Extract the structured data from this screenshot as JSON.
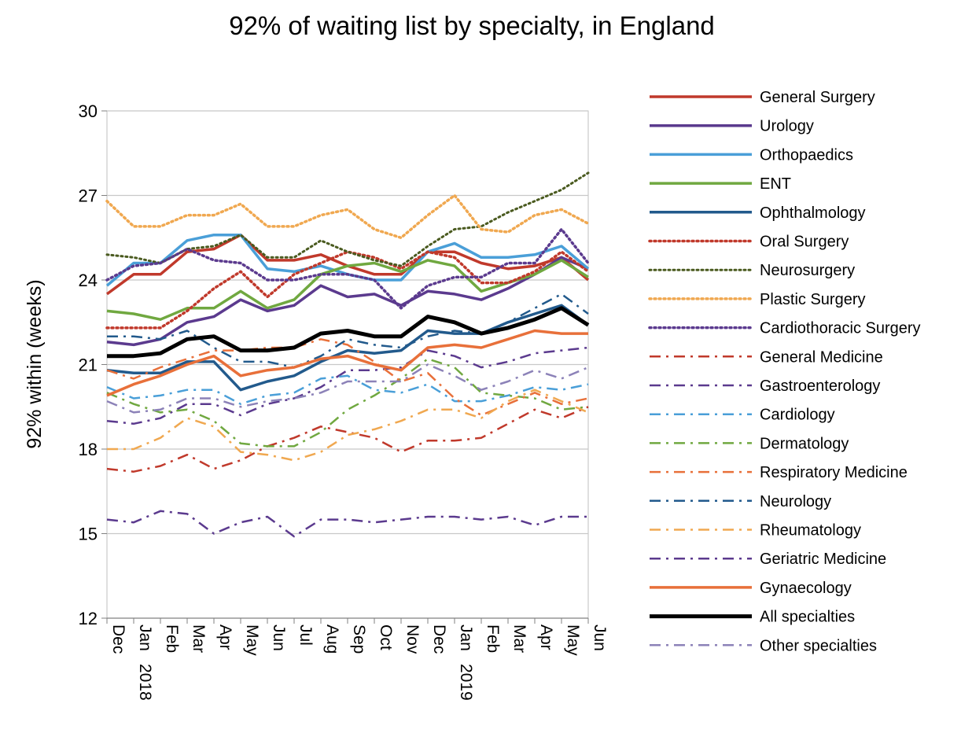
{
  "chart_data": {
    "type": "line",
    "title": "92% of waiting list by specialty, in England",
    "ylabel": "92% within  (weeks)",
    "xlabel": "",
    "ylim": [
      12,
      30
    ],
    "yticks": [
      12,
      15,
      18,
      21,
      24,
      27,
      30
    ],
    "grid": "horizontal",
    "legend_position": "right",
    "categories": [
      "Dec",
      "Jan",
      "Feb",
      "Mar",
      "Apr",
      "May",
      "Jun",
      "Jul",
      "Aug",
      "Sep",
      "Oct",
      "Nov",
      "Dec",
      "Jan",
      "Feb",
      "Mar",
      "Apr",
      "May",
      "Jun"
    ],
    "year_labels": [
      {
        "index": 1,
        "label": "2018"
      },
      {
        "index": 13,
        "label": "2019"
      }
    ],
    "series": [
      {
        "name": "General Surgery",
        "color": "#c0392b",
        "style": "solid",
        "width": 3.5,
        "values": [
          23.5,
          24.2,
          24.2,
          25.0,
          25.1,
          25.6,
          24.7,
          24.7,
          24.9,
          24.5,
          24.2,
          24.2,
          25.0,
          25.0,
          24.6,
          24.4,
          24.5,
          24.8,
          24.0
        ]
      },
      {
        "name": "Urology",
        "color": "#5b3a8e",
        "style": "solid",
        "width": 3.5,
        "values": [
          21.8,
          21.7,
          21.9,
          22.5,
          22.7,
          23.3,
          22.9,
          23.1,
          23.8,
          23.4,
          23.5,
          23.1,
          23.6,
          23.5,
          23.3,
          23.7,
          24.2,
          24.8,
          24.4
        ]
      },
      {
        "name": "Orthopaedics",
        "color": "#4a9fd8",
        "style": "solid",
        "width": 3.5,
        "values": [
          23.8,
          24.6,
          24.6,
          25.4,
          25.6,
          25.6,
          24.4,
          24.3,
          24.5,
          24.2,
          24.0,
          24.0,
          25.0,
          25.3,
          24.8,
          24.8,
          24.9,
          25.2,
          24.4
        ]
      },
      {
        "name": "ENT",
        "color": "#70a840",
        "style": "solid",
        "width": 3.5,
        "values": [
          22.9,
          22.8,
          22.6,
          23.0,
          23.0,
          23.6,
          23.0,
          23.3,
          24.2,
          24.5,
          24.6,
          24.3,
          24.7,
          24.5,
          23.6,
          23.9,
          24.2,
          24.7,
          24.1
        ]
      },
      {
        "name": "Ophthalmology",
        "color": "#225a8c",
        "style": "solid",
        "width": 3.5,
        "values": [
          20.8,
          20.7,
          20.7,
          21.1,
          21.1,
          20.1,
          20.4,
          20.6,
          21.1,
          21.5,
          21.4,
          21.5,
          22.2,
          22.1,
          22.1,
          22.5,
          22.8,
          23.1,
          22.4
        ]
      },
      {
        "name": "Oral Surgery",
        "color": "#c0392b",
        "style": "dotted",
        "width": 3.5,
        "values": [
          22.3,
          22.3,
          22.3,
          22.9,
          23.7,
          24.3,
          23.4,
          24.2,
          24.6,
          25.0,
          24.8,
          24.4,
          25.0,
          24.8,
          23.9,
          23.9,
          24.3,
          25.0,
          24.3
        ]
      },
      {
        "name": "Neurosurgery",
        "color": "#4a5a1f",
        "style": "dotted",
        "width": 3,
        "values": [
          24.9,
          24.8,
          24.6,
          25.1,
          25.2,
          25.6,
          24.8,
          24.8,
          25.4,
          25.0,
          24.7,
          24.5,
          25.2,
          25.8,
          25.9,
          26.4,
          26.8,
          27.2,
          27.8
        ]
      },
      {
        "name": "Plastic Surgery",
        "color": "#f0a850",
        "style": "dotted",
        "width": 3.5,
        "values": [
          26.8,
          25.9,
          25.9,
          26.3,
          26.3,
          26.7,
          25.9,
          25.9,
          26.3,
          26.5,
          25.8,
          25.5,
          26.3,
          27.0,
          25.8,
          25.7,
          26.3,
          26.5,
          26.0
        ]
      },
      {
        "name": "Cardiothoracic Surgery",
        "color": "#5b3a8e",
        "style": "dotted",
        "width": 3.5,
        "values": [
          24.0,
          24.5,
          24.6,
          25.1,
          24.7,
          24.6,
          24.0,
          24.0,
          24.2,
          24.2,
          24.0,
          23.0,
          23.8,
          24.1,
          24.1,
          24.6,
          24.6,
          25.8,
          24.6
        ]
      },
      {
        "name": "General Medicine",
        "color": "#c0392b",
        "style": "dashdot",
        "width": 2.5,
        "values": [
          17.3,
          17.2,
          17.4,
          17.8,
          17.3,
          17.6,
          18.1,
          18.4,
          18.8,
          18.6,
          18.4,
          17.9,
          18.3,
          18.3,
          18.4,
          18.9,
          19.4,
          19.1,
          19.5
        ]
      },
      {
        "name": "Gastroenterology",
        "color": "#5b3a8e",
        "style": "dashdot",
        "width": 2.5,
        "values": [
          19.0,
          18.9,
          19.1,
          19.6,
          19.6,
          19.2,
          19.6,
          19.8,
          20.2,
          20.8,
          20.8,
          20.9,
          21.5,
          21.3,
          20.9,
          21.1,
          21.4,
          21.5,
          21.6
        ]
      },
      {
        "name": "Cardiology",
        "color": "#4a9fd8",
        "style": "dashdot",
        "width": 2.5,
        "values": [
          20.2,
          19.8,
          19.9,
          20.1,
          20.1,
          19.6,
          19.9,
          20.0,
          20.5,
          20.6,
          20.1,
          20.0,
          20.3,
          19.7,
          19.7,
          19.9,
          20.2,
          20.1,
          20.3
        ]
      },
      {
        "name": "Dermatology",
        "color": "#70a840",
        "style": "dashdot",
        "width": 2.5,
        "values": [
          20.0,
          19.6,
          19.3,
          19.4,
          19.0,
          18.2,
          18.1,
          18.1,
          18.6,
          19.4,
          19.9,
          20.5,
          21.2,
          20.9,
          20.0,
          19.9,
          19.8,
          19.4,
          19.5
        ]
      },
      {
        "name": "Respiratory Medicine",
        "color": "#e8703a",
        "style": "dashdot",
        "width": 2.5,
        "values": [
          20.8,
          20.5,
          20.9,
          21.2,
          21.5,
          21.5,
          21.6,
          21.6,
          21.9,
          21.7,
          21.1,
          20.4,
          20.7,
          19.8,
          19.2,
          19.6,
          20.0,
          19.6,
          19.8
        ]
      },
      {
        "name": "Neurology",
        "color": "#225a8c",
        "style": "dashdot",
        "width": 2.5,
        "values": [
          22.0,
          22.0,
          21.9,
          22.2,
          21.6,
          21.1,
          21.1,
          20.9,
          21.3,
          21.9,
          21.7,
          21.6,
          22.0,
          22.2,
          22.1,
          22.5,
          23.0,
          23.5,
          22.8
        ]
      },
      {
        "name": "Rheumatology",
        "color": "#f0a850",
        "style": "dashdot",
        "width": 2.5,
        "values": [
          18.0,
          18.0,
          18.4,
          19.1,
          18.8,
          17.9,
          17.8,
          17.6,
          17.9,
          18.5,
          18.7,
          19.0,
          19.4,
          19.4,
          19.1,
          19.7,
          20.1,
          19.7,
          19.3
        ]
      },
      {
        "name": "Geriatric Medicine",
        "color": "#5b3a8e",
        "style": "dashdot",
        "width": 2.5,
        "values": [
          15.5,
          15.4,
          15.8,
          15.7,
          15.0,
          15.4,
          15.6,
          14.9,
          15.5,
          15.5,
          15.4,
          15.5,
          15.6,
          15.6,
          15.5,
          15.6,
          15.3,
          15.6,
          15.6
        ]
      },
      {
        "name": "Gynaecology",
        "color": "#e8703a",
        "style": "solid",
        "width": 3.5,
        "values": [
          19.9,
          20.3,
          20.6,
          21.0,
          21.3,
          20.6,
          20.8,
          20.9,
          21.2,
          21.3,
          21.0,
          20.8,
          21.6,
          21.7,
          21.6,
          21.9,
          22.2,
          22.1,
          22.1
        ]
      },
      {
        "name": "All specialties",
        "color": "#000000",
        "style": "solid",
        "width": 5,
        "values": [
          21.3,
          21.3,
          21.4,
          21.9,
          22.0,
          21.5,
          21.5,
          21.6,
          22.1,
          22.2,
          22.0,
          22.0,
          22.7,
          22.5,
          22.1,
          22.3,
          22.6,
          23.0,
          22.4
        ]
      },
      {
        "name": "Other specialties",
        "color": "#8c82b8",
        "style": "dashdot",
        "width": 2.5,
        "values": [
          19.7,
          19.3,
          19.4,
          19.8,
          19.8,
          19.5,
          19.7,
          19.8,
          20.0,
          20.4,
          20.4,
          20.4,
          21.0,
          20.6,
          20.1,
          20.4,
          20.8,
          20.5,
          20.9
        ]
      }
    ]
  }
}
